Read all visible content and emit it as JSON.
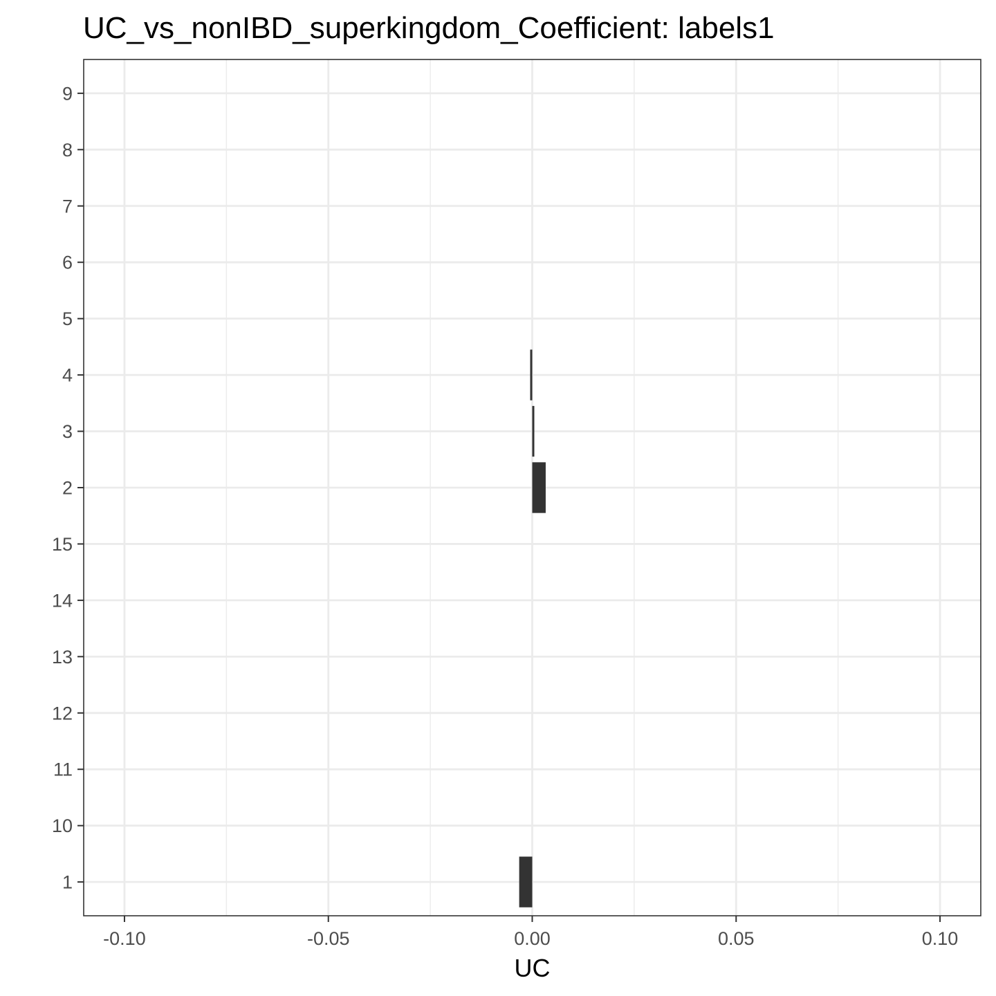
{
  "chart_data": {
    "type": "bar",
    "orientation": "horizontal",
    "title": "UC_vs_nonIBD_superkingdom_Coefficient: labels1",
    "xlabel": "UC",
    "ylabel": "",
    "xlim": [
      -0.11,
      0.11
    ],
    "x_ticks": [
      -0.1,
      -0.05,
      0.0,
      0.05,
      0.1
    ],
    "x_tick_labels": [
      "-0.10",
      "-0.05",
      "0.00",
      "0.05",
      "0.10"
    ],
    "categories": [
      "1",
      "10",
      "11",
      "12",
      "13",
      "14",
      "15",
      "2",
      "3",
      "4",
      "5",
      "6",
      "7",
      "8",
      "9"
    ],
    "values": [
      -0.0032,
      0,
      0,
      0,
      0,
      0,
      0,
      0.0033,
      0.0003,
      -0.0003,
      0,
      0,
      0,
      0,
      0
    ],
    "bar_color": "#333333",
    "grid": true,
    "legend": "none"
  }
}
